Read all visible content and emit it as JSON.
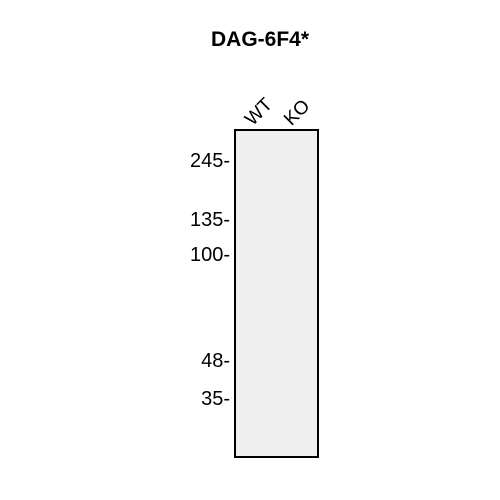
{
  "title": "DAG-6F4*",
  "lanes": [
    {
      "label": "WT"
    },
    {
      "label": "KO"
    }
  ],
  "markers": [
    {
      "label": "245-"
    },
    {
      "label": "135-"
    },
    {
      "label": "100-"
    },
    {
      "label": "48-"
    },
    {
      "label": "35-"
    }
  ],
  "colors": {
    "blot_background": "#efefef",
    "border": "#000000"
  }
}
